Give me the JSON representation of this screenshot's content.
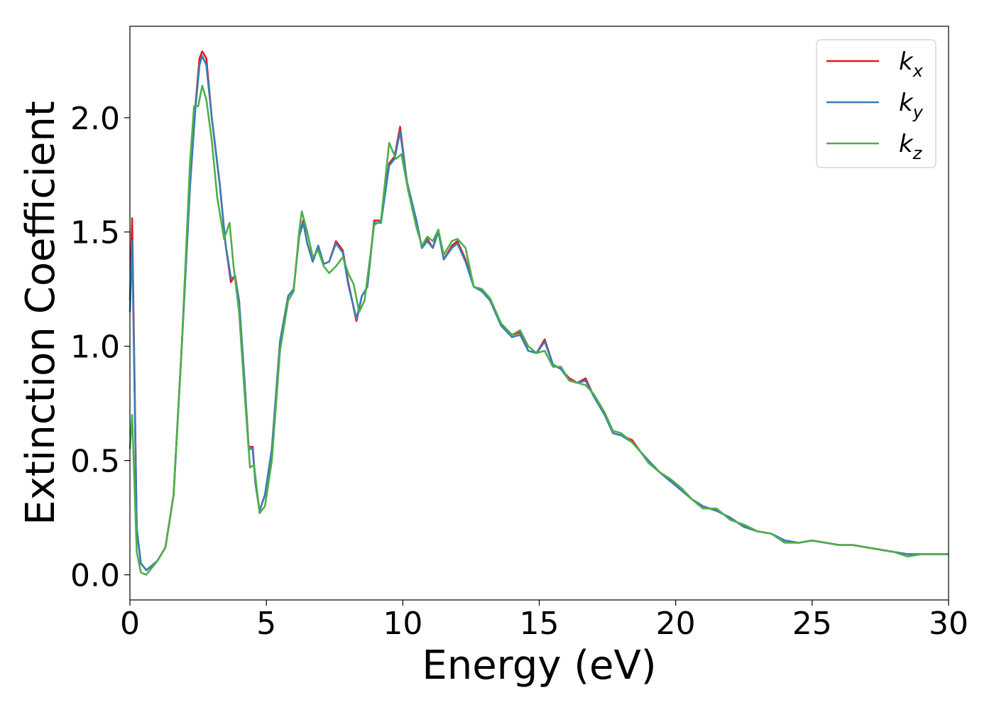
{
  "chart_data": {
    "type": "line",
    "xlabel": "Energy (eV)",
    "ylabel": "Extinction Coefficient",
    "xlim": [
      0,
      30
    ],
    "ylim": [
      -0.11,
      2.4
    ],
    "xticks": [
      0,
      5,
      10,
      15,
      20,
      25,
      30
    ],
    "xtick_labels": [
      "0",
      "5",
      "10",
      "15",
      "20",
      "25",
      "30"
    ],
    "yticks": [
      0.0,
      0.5,
      1.0,
      1.5,
      2.0
    ],
    "ytick_labels": [
      "0.0",
      "0.5",
      "1.0",
      "1.5",
      "2.0"
    ],
    "grid": false,
    "legend_position": "top-right",
    "series": [
      {
        "name": "k_x",
        "label_base": "k",
        "label_sub": "x",
        "color": "#e41a1c",
        "points": [
          [
            0,
            1.2
          ],
          [
            0.08,
            1.56
          ],
          [
            0.15,
            1.0
          ],
          [
            0.25,
            0.2
          ],
          [
            0.4,
            0.05
          ],
          [
            0.6,
            0.02
          ],
          [
            0.8,
            0.04
          ],
          [
            1.0,
            0.06
          ],
          [
            1.3,
            0.12
          ],
          [
            1.6,
            0.35
          ],
          [
            1.9,
            1.0
          ],
          [
            2.2,
            1.7
          ],
          [
            2.4,
            2.05
          ],
          [
            2.55,
            2.26
          ],
          [
            2.65,
            2.29
          ],
          [
            2.8,
            2.26
          ],
          [
            3.0,
            2.0
          ],
          [
            3.3,
            1.7
          ],
          [
            3.5,
            1.45
          ],
          [
            3.7,
            1.28
          ],
          [
            3.85,
            1.31
          ],
          [
            4.0,
            1.2
          ],
          [
            4.2,
            0.85
          ],
          [
            4.35,
            0.56
          ],
          [
            4.5,
            0.56
          ],
          [
            4.6,
            0.4
          ],
          [
            4.75,
            0.28
          ],
          [
            4.95,
            0.35
          ],
          [
            5.2,
            0.55
          ],
          [
            5.5,
            1.02
          ],
          [
            5.8,
            1.22
          ],
          [
            6.0,
            1.25
          ],
          [
            6.2,
            1.48
          ],
          [
            6.35,
            1.55
          ],
          [
            6.5,
            1.45
          ],
          [
            6.7,
            1.37
          ],
          [
            6.9,
            1.44
          ],
          [
            7.1,
            1.36
          ],
          [
            7.3,
            1.37
          ],
          [
            7.55,
            1.46
          ],
          [
            7.8,
            1.42
          ],
          [
            8.0,
            1.28
          ],
          [
            8.3,
            1.11
          ],
          [
            8.5,
            1.22
          ],
          [
            8.7,
            1.26
          ],
          [
            8.95,
            1.55
          ],
          [
            9.2,
            1.55
          ],
          [
            9.5,
            1.8
          ],
          [
            9.7,
            1.83
          ],
          [
            9.9,
            1.96
          ],
          [
            10.15,
            1.72
          ],
          [
            10.5,
            1.55
          ],
          [
            10.7,
            1.43
          ],
          [
            10.9,
            1.47
          ],
          [
            11.1,
            1.43
          ],
          [
            11.3,
            1.51
          ],
          [
            11.5,
            1.38
          ],
          [
            11.8,
            1.44
          ],
          [
            12.0,
            1.46
          ],
          [
            12.3,
            1.38
          ],
          [
            12.6,
            1.26
          ],
          [
            12.9,
            1.25
          ],
          [
            13.2,
            1.2
          ],
          [
            13.6,
            1.1
          ],
          [
            14.0,
            1.05
          ],
          [
            14.3,
            1.06
          ],
          [
            14.6,
            0.98
          ],
          [
            14.9,
            0.97
          ],
          [
            15.2,
            1.03
          ],
          [
            15.5,
            0.92
          ],
          [
            15.8,
            0.9
          ],
          [
            16.1,
            0.86
          ],
          [
            16.4,
            0.84
          ],
          [
            16.7,
            0.86
          ],
          [
            17.0,
            0.78
          ],
          [
            17.4,
            0.7
          ],
          [
            17.7,
            0.62
          ],
          [
            18.0,
            0.61
          ],
          [
            18.4,
            0.59
          ],
          [
            18.7,
            0.54
          ],
          [
            19.0,
            0.5
          ],
          [
            19.4,
            0.45
          ],
          [
            19.8,
            0.41
          ],
          [
            20.2,
            0.38
          ],
          [
            20.6,
            0.33
          ],
          [
            21.0,
            0.3
          ],
          [
            21.5,
            0.28
          ],
          [
            22.0,
            0.25
          ],
          [
            22.5,
            0.21
          ],
          [
            23.0,
            0.19
          ],
          [
            23.5,
            0.18
          ],
          [
            24.0,
            0.15
          ],
          [
            24.5,
            0.14
          ],
          [
            25.0,
            0.15
          ],
          [
            25.5,
            0.14
          ],
          [
            26.0,
            0.13
          ],
          [
            26.5,
            0.13
          ],
          [
            27.0,
            0.12
          ],
          [
            27.5,
            0.11
          ],
          [
            28.0,
            0.1
          ],
          [
            28.5,
            0.09
          ],
          [
            29.0,
            0.09
          ],
          [
            29.5,
            0.09
          ],
          [
            30.0,
            0.09
          ]
        ]
      },
      {
        "name": "k_y",
        "label_base": "k",
        "label_sub": "y",
        "color": "#377eb8",
        "points": [
          [
            0,
            1.15
          ],
          [
            0.08,
            1.46
          ],
          [
            0.15,
            0.95
          ],
          [
            0.25,
            0.2
          ],
          [
            0.4,
            0.05
          ],
          [
            0.6,
            0.02
          ],
          [
            0.8,
            0.04
          ],
          [
            1.0,
            0.06
          ],
          [
            1.3,
            0.12
          ],
          [
            1.6,
            0.35
          ],
          [
            1.9,
            1.0
          ],
          [
            2.2,
            1.7
          ],
          [
            2.4,
            2.04
          ],
          [
            2.55,
            2.23
          ],
          [
            2.65,
            2.27
          ],
          [
            2.8,
            2.23
          ],
          [
            3.0,
            2.0
          ],
          [
            3.3,
            1.7
          ],
          [
            3.5,
            1.45
          ],
          [
            3.7,
            1.3
          ],
          [
            3.85,
            1.3
          ],
          [
            4.0,
            1.2
          ],
          [
            4.2,
            0.85
          ],
          [
            4.35,
            0.55
          ],
          [
            4.5,
            0.55
          ],
          [
            4.6,
            0.4
          ],
          [
            4.75,
            0.28
          ],
          [
            4.95,
            0.35
          ],
          [
            5.2,
            0.55
          ],
          [
            5.5,
            1.02
          ],
          [
            5.8,
            1.22
          ],
          [
            6.0,
            1.25
          ],
          [
            6.2,
            1.48
          ],
          [
            6.35,
            1.54
          ],
          [
            6.5,
            1.45
          ],
          [
            6.7,
            1.37
          ],
          [
            6.9,
            1.44
          ],
          [
            7.1,
            1.36
          ],
          [
            7.3,
            1.37
          ],
          [
            7.55,
            1.45
          ],
          [
            7.8,
            1.41
          ],
          [
            8.0,
            1.27
          ],
          [
            8.3,
            1.12
          ],
          [
            8.5,
            1.22
          ],
          [
            8.7,
            1.26
          ],
          [
            8.95,
            1.54
          ],
          [
            9.2,
            1.54
          ],
          [
            9.5,
            1.79
          ],
          [
            9.7,
            1.82
          ],
          [
            9.9,
            1.94
          ],
          [
            10.15,
            1.72
          ],
          [
            10.5,
            1.55
          ],
          [
            10.7,
            1.43
          ],
          [
            10.9,
            1.46
          ],
          [
            11.1,
            1.43
          ],
          [
            11.3,
            1.5
          ],
          [
            11.5,
            1.38
          ],
          [
            11.8,
            1.43
          ],
          [
            12.0,
            1.45
          ],
          [
            12.3,
            1.37
          ],
          [
            12.6,
            1.26
          ],
          [
            12.9,
            1.24
          ],
          [
            13.2,
            1.2
          ],
          [
            13.6,
            1.09
          ],
          [
            14.0,
            1.04
          ],
          [
            14.3,
            1.05
          ],
          [
            14.6,
            0.98
          ],
          [
            14.9,
            0.97
          ],
          [
            15.2,
            1.02
          ],
          [
            15.5,
            0.92
          ],
          [
            15.8,
            0.9
          ],
          [
            16.1,
            0.85
          ],
          [
            16.4,
            0.84
          ],
          [
            16.7,
            0.85
          ],
          [
            17.0,
            0.78
          ],
          [
            17.4,
            0.7
          ],
          [
            17.7,
            0.62
          ],
          [
            18.0,
            0.61
          ],
          [
            18.4,
            0.58
          ],
          [
            18.7,
            0.54
          ],
          [
            19.0,
            0.5
          ],
          [
            19.4,
            0.45
          ],
          [
            19.8,
            0.41
          ],
          [
            20.2,
            0.37
          ],
          [
            20.6,
            0.33
          ],
          [
            21.0,
            0.3
          ],
          [
            21.5,
            0.28
          ],
          [
            22.0,
            0.25
          ],
          [
            22.5,
            0.21
          ],
          [
            23.0,
            0.19
          ],
          [
            23.5,
            0.18
          ],
          [
            24.0,
            0.15
          ],
          [
            24.5,
            0.14
          ],
          [
            25.0,
            0.15
          ],
          [
            25.5,
            0.14
          ],
          [
            26.0,
            0.13
          ],
          [
            26.5,
            0.13
          ],
          [
            27.0,
            0.12
          ],
          [
            27.5,
            0.11
          ],
          [
            28.0,
            0.1
          ],
          [
            28.5,
            0.09
          ],
          [
            29.0,
            0.09
          ],
          [
            29.5,
            0.09
          ],
          [
            30.0,
            0.09
          ]
        ]
      },
      {
        "name": "k_z",
        "label_base": "k",
        "label_sub": "z",
        "color": "#4daf4a",
        "points": [
          [
            0,
            0.55
          ],
          [
            0.08,
            0.7
          ],
          [
            0.15,
            0.45
          ],
          [
            0.25,
            0.1
          ],
          [
            0.4,
            0.01
          ],
          [
            0.6,
            0.0
          ],
          [
            0.8,
            0.03
          ],
          [
            1.0,
            0.06
          ],
          [
            1.3,
            0.12
          ],
          [
            1.6,
            0.35
          ],
          [
            1.9,
            1.0
          ],
          [
            2.2,
            1.8
          ],
          [
            2.35,
            2.05
          ],
          [
            2.5,
            2.05
          ],
          [
            2.65,
            2.14
          ],
          [
            2.8,
            2.08
          ],
          [
            3.0,
            1.9
          ],
          [
            3.2,
            1.65
          ],
          [
            3.45,
            1.47
          ],
          [
            3.65,
            1.54
          ],
          [
            3.8,
            1.35
          ],
          [
            4.0,
            1.15
          ],
          [
            4.2,
            0.8
          ],
          [
            4.4,
            0.47
          ],
          [
            4.55,
            0.48
          ],
          [
            4.75,
            0.27
          ],
          [
            4.95,
            0.3
          ],
          [
            5.2,
            0.5
          ],
          [
            5.5,
            0.98
          ],
          [
            5.8,
            1.2
          ],
          [
            6.0,
            1.24
          ],
          [
            6.2,
            1.5
          ],
          [
            6.3,
            1.59
          ],
          [
            6.5,
            1.5
          ],
          [
            6.7,
            1.39
          ],
          [
            6.9,
            1.42
          ],
          [
            7.1,
            1.35
          ],
          [
            7.3,
            1.32
          ],
          [
            7.55,
            1.35
          ],
          [
            7.8,
            1.39
          ],
          [
            8.0,
            1.32
          ],
          [
            8.2,
            1.27
          ],
          [
            8.4,
            1.15
          ],
          [
            8.6,
            1.2
          ],
          [
            8.95,
            1.53
          ],
          [
            9.2,
            1.55
          ],
          [
            9.5,
            1.89
          ],
          [
            9.75,
            1.82
          ],
          [
            9.95,
            1.84
          ],
          [
            10.2,
            1.68
          ],
          [
            10.5,
            1.52
          ],
          [
            10.7,
            1.44
          ],
          [
            10.9,
            1.48
          ],
          [
            11.1,
            1.46
          ],
          [
            11.3,
            1.51
          ],
          [
            11.5,
            1.4
          ],
          [
            11.8,
            1.46
          ],
          [
            12.0,
            1.47
          ],
          [
            12.3,
            1.43
          ],
          [
            12.6,
            1.26
          ],
          [
            12.9,
            1.25
          ],
          [
            13.2,
            1.21
          ],
          [
            13.6,
            1.1
          ],
          [
            14.0,
            1.05
          ],
          [
            14.3,
            1.07
          ],
          [
            14.6,
            1.0
          ],
          [
            14.9,
            0.97
          ],
          [
            15.2,
            0.98
          ],
          [
            15.5,
            0.91
          ],
          [
            15.8,
            0.91
          ],
          [
            16.1,
            0.85
          ],
          [
            16.4,
            0.84
          ],
          [
            16.7,
            0.83
          ],
          [
            17.0,
            0.79
          ],
          [
            17.4,
            0.71
          ],
          [
            17.7,
            0.63
          ],
          [
            18.0,
            0.62
          ],
          [
            18.4,
            0.58
          ],
          [
            18.7,
            0.54
          ],
          [
            19.0,
            0.49
          ],
          [
            19.4,
            0.45
          ],
          [
            19.8,
            0.42
          ],
          [
            20.2,
            0.38
          ],
          [
            20.6,
            0.33
          ],
          [
            21.0,
            0.29
          ],
          [
            21.5,
            0.29
          ],
          [
            22.0,
            0.24
          ],
          [
            22.5,
            0.22
          ],
          [
            23.0,
            0.19
          ],
          [
            23.5,
            0.18
          ],
          [
            24.0,
            0.14
          ],
          [
            24.5,
            0.14
          ],
          [
            25.0,
            0.15
          ],
          [
            25.5,
            0.14
          ],
          [
            26.0,
            0.13
          ],
          [
            26.5,
            0.13
          ],
          [
            27.0,
            0.12
          ],
          [
            27.5,
            0.11
          ],
          [
            28.0,
            0.1
          ],
          [
            28.5,
            0.08
          ],
          [
            29.0,
            0.09
          ],
          [
            29.5,
            0.09
          ],
          [
            30.0,
            0.09
          ]
        ]
      }
    ]
  }
}
